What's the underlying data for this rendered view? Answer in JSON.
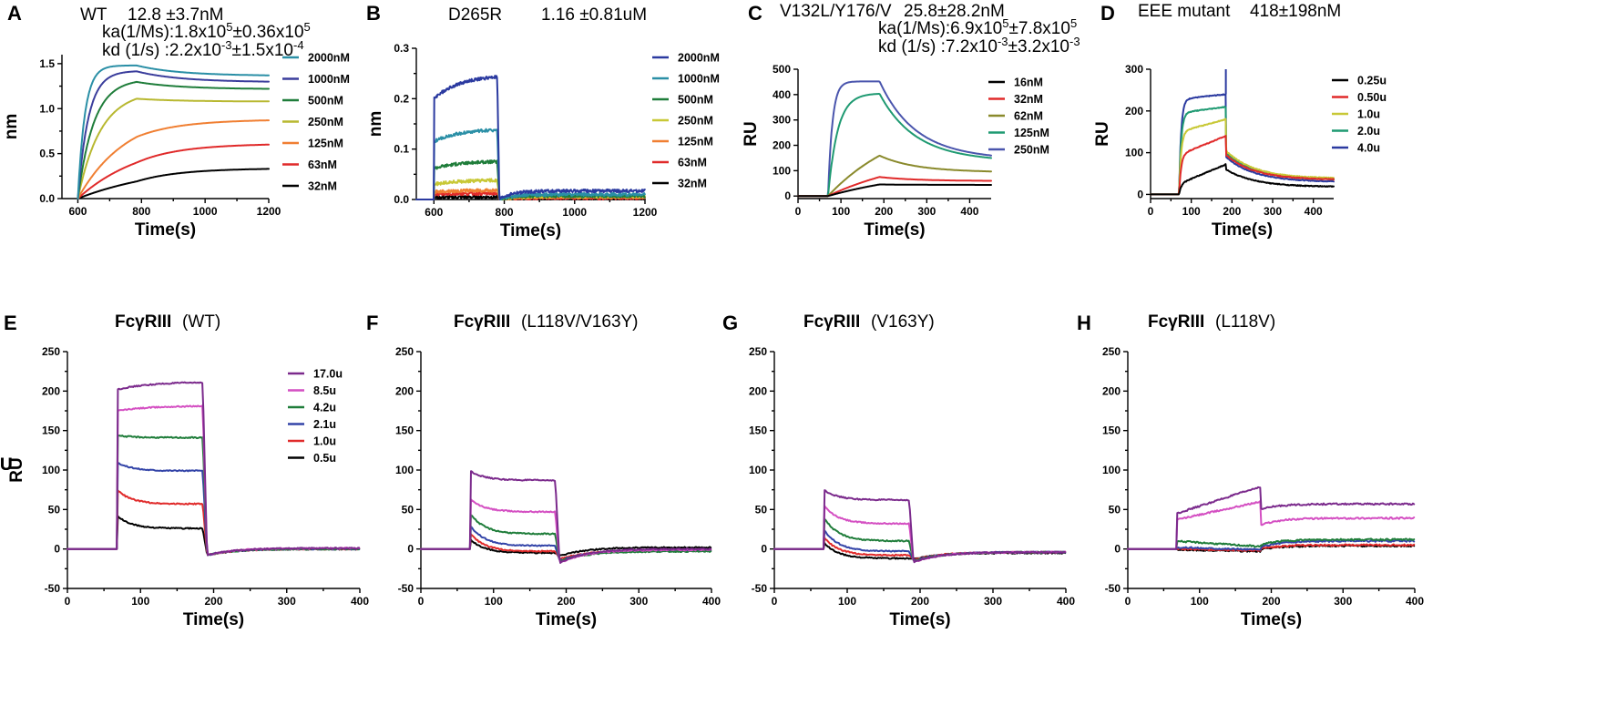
{
  "chart_data": [
    {
      "id": "A",
      "panel_label": "A",
      "type": "line",
      "title": "WT",
      "title_bold": "",
      "subtitle": "12.8 ±3.7nM",
      "annotations": [
        {
          "prefix": "ka(1/Ms):1.8x10",
          "sup1": "5",
          "mid": "±0.36x10",
          "sup2": "5"
        },
        {
          "prefix": "kd (1/s)  :2.2x10",
          "sup1": "-3",
          "mid": "±1.5x10",
          "sup2": "-4"
        }
      ],
      "xlabel": "Time(s)",
      "ylabel": "nm",
      "xlim": [
        550,
        1200
      ],
      "ylim": [
        0,
        1.6
      ],
      "xticks": [
        600,
        800,
        1000,
        1200
      ],
      "yticks": [
        0.0,
        0.5,
        1.0,
        1.5
      ],
      "ytick_labels": [
        "0.0",
        "0.5",
        "1.0",
        "1.5"
      ],
      "xminor": [
        700,
        900,
        1100
      ],
      "yminor": [
        0.25,
        0.75,
        1.25
      ],
      "model": {
        "kind": "kin",
        "t0": 600,
        "t1": 785,
        "tend": 1200,
        "noise": 0.0
      },
      "series": [
        {
          "name": "2000nM",
          "color": "#2a8fa6",
          "plateau": 1.48,
          "rate": 0.045,
          "final": 1.37
        },
        {
          "name": "1000nM",
          "color": "#3a3d9c",
          "plateau": 1.42,
          "rate": 0.03,
          "final": 1.3
        },
        {
          "name": "500nM",
          "color": "#1f7d3a",
          "plateau": 1.33,
          "rate": 0.02,
          "final": 1.22
        },
        {
          "name": "250nM",
          "color": "#b8b830",
          "plateau": 1.2,
          "rate": 0.014,
          "final": 1.08
        },
        {
          "name": "125nM",
          "color": "#f07f32",
          "plateau": 0.98,
          "rate": 0.0065,
          "final": 0.87
        },
        {
          "name": "63nM",
          "color": "#e02a2a",
          "plateau": 0.68,
          "rate": 0.0048,
          "final": 0.6
        },
        {
          "name": "32nM",
          "color": "#000000",
          "plateau": 0.4,
          "rate": 0.0035,
          "final": 0.33
        }
      ]
    },
    {
      "id": "B",
      "panel_label": "B",
      "type": "line",
      "title": "D265R",
      "title_bold": "",
      "subtitle": "1.16 ±0.81uM",
      "annotations": [],
      "xlabel": "Time(s)",
      "ylabel": "nm",
      "xlim": [
        550,
        1200
      ],
      "ylim": [
        0,
        0.3
      ],
      "xticks": [
        600,
        800,
        1000,
        1200
      ],
      "yticks": [
        0.0,
        0.1,
        0.2,
        0.3
      ],
      "ytick_labels": [
        "0.0",
        "0.1",
        "0.2",
        "0.3"
      ],
      "xminor": [
        700,
        900,
        1100
      ],
      "yminor": [
        0.05,
        0.15,
        0.25
      ],
      "model": {
        "kind": "fast",
        "base_start": 550,
        "t0": 600,
        "t1": 780,
        "tend": 1200,
        "noise": 0.003
      },
      "series": [
        {
          "name": "2000nM",
          "color": "#2b3aa0",
          "jump": 0.2,
          "end": 0.243,
          "after": 0.045,
          "tail": 0.017,
          "dip": 0
        },
        {
          "name": "1000nM",
          "color": "#2a8fa6",
          "jump": 0.115,
          "end": 0.138,
          "after": 0.035,
          "tail": 0.01,
          "dip": 0
        },
        {
          "name": "500nM",
          "color": "#1f7d3a",
          "jump": 0.062,
          "end": 0.075,
          "after": 0.025,
          "tail": 0.007,
          "dip": 0
        },
        {
          "name": "250nM",
          "color": "#c8c836",
          "jump": 0.03,
          "end": 0.038,
          "after": 0.018,
          "tail": 0.006,
          "dip": 0
        },
        {
          "name": "125nM",
          "color": "#f07f32",
          "jump": 0.015,
          "end": 0.018,
          "after": 0.012,
          "tail": 0.005,
          "dip": 0
        },
        {
          "name": "63nM",
          "color": "#e02a2a",
          "jump": 0.01,
          "end": 0.012,
          "after": 0.008,
          "tail": 0.003,
          "dip": 0
        },
        {
          "name": "32nM",
          "color": "#000000",
          "jump": 0.004,
          "end": 0.005,
          "after": 0.004,
          "tail": 0.002,
          "dip": 0
        }
      ]
    },
    {
      "id": "C",
      "panel_label": "C",
      "type": "line",
      "title": "V132L/Y176/V",
      "title_bold": "",
      "subtitle": "25.8±28.2nM",
      "annotations": [
        {
          "prefix": "ka(1/Ms):6.9x10",
          "sup1": "5",
          "mid": "±7.8x10",
          "sup2": "5"
        },
        {
          "prefix": "kd (1/s)  :7.2x10",
          "sup1": "-3",
          "mid": "±3.2x10",
          "sup2": "-3"
        }
      ],
      "xlabel": "Time(s)",
      "ylabel": "RU",
      "xlim": [
        0,
        450
      ],
      "ylim": [
        -10,
        500
      ],
      "xticks": [
        0,
        100,
        200,
        300,
        400
      ],
      "yticks": [
        0,
        100,
        200,
        300,
        400,
        500
      ],
      "ytick_labels": [
        "0",
        "100",
        "200",
        "300",
        "400",
        "500"
      ],
      "xminor": [
        50,
        150,
        250,
        350
      ],
      "yminor": [],
      "model": {
        "kind": "kin",
        "base_start": 0,
        "t0": 70,
        "t1": 190,
        "tend": 450,
        "noise": 0.0
      },
      "series": [
        {
          "name": "16nM",
          "color": "#000000",
          "plateau": 120,
          "rate": 0.004,
          "final": 44
        },
        {
          "name": "32nM",
          "color": "#e02a2a",
          "plateau": 180,
          "rate": 0.0045,
          "final": 60
        },
        {
          "name": "62nM",
          "color": "#8a8a2c",
          "plateau": 330,
          "rate": 0.0055,
          "final": 97
        },
        {
          "name": "125nM",
          "color": "#1f9a72",
          "plateau": 405,
          "rate": 0.045,
          "final": 150
        },
        {
          "name": "250nM",
          "color": "#4a55ad",
          "plateau": 452,
          "rate": 0.1,
          "final": 160
        }
      ]
    },
    {
      "id": "D",
      "panel_label": "D",
      "type": "line",
      "title": "EEE mutant",
      "title_bold": "",
      "subtitle": "418±198nM",
      "annotations": [],
      "xlabel": "Time(s)",
      "ylabel": "RU",
      "xlim": [
        0,
        450
      ],
      "ylim": [
        -10,
        300
      ],
      "xticks": [
        0,
        100,
        200,
        300,
        400
      ],
      "yticks": [
        0,
        100,
        200,
        300
      ],
      "ytick_labels": [
        "0",
        "100",
        "200",
        "300"
      ],
      "xminor": [
        50,
        150,
        250,
        350
      ],
      "yminor": [],
      "model": {
        "kind": "mixed",
        "base_start": 0,
        "t0": 70,
        "t1": 185,
        "tend": 450,
        "noise": 1.0
      },
      "series": [
        {
          "name": "0.25u",
          "color": "#000000",
          "jump": 25,
          "end": 72,
          "after": 60,
          "tail": 18,
          "spike": 0
        },
        {
          "name": "0.50u",
          "color": "#e02a2a",
          "jump": 95,
          "end": 140,
          "after": 95,
          "tail": 35,
          "spike": 0
        },
        {
          "name": "1.0u",
          "color": "#c8c836",
          "jump": 150,
          "end": 180,
          "after": 105,
          "tail": 38,
          "spike": 0
        },
        {
          "name": "2.0u",
          "color": "#1f9a72",
          "jump": 195,
          "end": 210,
          "after": 100,
          "tail": 35,
          "spike": 0
        },
        {
          "name": "4.0u",
          "color": "#2b3aa0",
          "jump": 228,
          "end": 240,
          "after": 90,
          "tail": 30,
          "spike": 300
        }
      ]
    },
    {
      "id": "E",
      "panel_label": "E",
      "type": "line",
      "title": "FcγRIII",
      "title_bold": "bold",
      "subtitle": "(WT)",
      "annotations": [],
      "xlabel": "Time(s)",
      "ylabel": "RU",
      "xlim": [
        0,
        400
      ],
      "ylim": [
        -50,
        250
      ],
      "xticks": [
        0,
        100,
        200,
        300,
        400
      ],
      "yticks": [
        -50,
        0,
        50,
        100,
        150,
        200,
        250
      ],
      "ytick_labels": [
        "-50",
        "0",
        "50",
        "100",
        "150",
        "200",
        "250"
      ],
      "xminor": [
        50,
        150,
        250,
        350
      ],
      "yminor": [
        -25,
        25,
        75,
        125,
        175,
        225
      ],
      "model": {
        "kind": "fast",
        "base_start": 0,
        "t0": 68,
        "t1": 185,
        "tend": 400,
        "noise": 0.8
      },
      "series": [
        {
          "name": "17.0u",
          "color": "#7b2a8c",
          "jump": 202,
          "end": 211,
          "after": -5,
          "tail": 1,
          "dip": -8
        },
        {
          "name": "8.5u",
          "color": "#d44fc2",
          "jump": 175,
          "end": 181,
          "after": -5,
          "tail": 1,
          "dip": -8
        },
        {
          "name": "4.2u",
          "color": "#1f7d3a",
          "jump": 144,
          "end": 141,
          "after": -5,
          "tail": 0,
          "dip": -8
        },
        {
          "name": "2.1u",
          "color": "#3344a8",
          "jump": 110,
          "end": 99,
          "after": -5,
          "tail": 0,
          "dip": -8
        },
        {
          "name": "1.0u",
          "color": "#e02a2a",
          "jump": 75,
          "end": 57,
          "after": -5,
          "tail": 0,
          "dip": -8
        },
        {
          "name": "0.5u",
          "color": "#000000",
          "jump": 42,
          "end": 26,
          "after": -5,
          "tail": 0,
          "dip": -8
        }
      ]
    },
    {
      "id": "F",
      "panel_label": "F",
      "type": "line",
      "title": "FcγRIII",
      "title_bold": "bold",
      "subtitle": "(L118V/V163Y)",
      "annotations": [],
      "xlabel": "Time(s)",
      "ylabel": "RU",
      "xlim": [
        0,
        400
      ],
      "ylim": [
        -50,
        250
      ],
      "xticks": [
        0,
        100,
        200,
        300,
        400
      ],
      "yticks": [
        -50,
        0,
        50,
        100,
        150,
        200,
        250
      ],
      "ytick_labels": [
        "-50",
        "0",
        "50",
        "100",
        "150",
        "200",
        "250"
      ],
      "xminor": [
        50,
        150,
        250,
        350
      ],
      "yminor": [
        -25,
        25,
        75,
        125,
        175,
        225
      ],
      "model": {
        "kind": "fast",
        "base_start": 0,
        "t0": 68,
        "t1": 185,
        "tend": 400,
        "noise": 0.8
      },
      "series": [
        {
          "name": "17.0u",
          "color": "#7b2a8c",
          "jump": 99,
          "end": 87,
          "after": -15,
          "tail": 0,
          "dip": -18
        },
        {
          "name": "8.5u",
          "color": "#d44fc2",
          "jump": 63,
          "end": 47,
          "after": -15,
          "tail": -1,
          "dip": -18
        },
        {
          "name": "4.2u",
          "color": "#1f7d3a",
          "jump": 45,
          "end": 19,
          "after": -14,
          "tail": -3,
          "dip": -16
        },
        {
          "name": "2.1u",
          "color": "#3344a8",
          "jump": 30,
          "end": 4,
          "after": -13,
          "tail": -2,
          "dip": -15
        },
        {
          "name": "1.0u",
          "color": "#e02a2a",
          "jump": 20,
          "end": -3,
          "after": -12,
          "tail": -2,
          "dip": -13
        },
        {
          "name": "0.5u",
          "color": "#000000",
          "jump": 12,
          "end": -5,
          "after": -8,
          "tail": 2,
          "dip": -9
        }
      ]
    },
    {
      "id": "G",
      "panel_label": "G",
      "type": "line",
      "title": "FcγRIII",
      "title_bold": "bold",
      "subtitle": "(V163Y)",
      "annotations": [],
      "xlabel": "Time(s)",
      "ylabel": "RU",
      "xlim": [
        0,
        400
      ],
      "ylim": [
        -50,
        250
      ],
      "xticks": [
        0,
        100,
        200,
        300,
        400
      ],
      "yticks": [
        -50,
        0,
        50,
        100,
        150,
        200,
        250
      ],
      "ytick_labels": [
        "-50",
        "0",
        "50",
        "100",
        "150",
        "200",
        "250"
      ],
      "xminor": [
        50,
        150,
        250,
        350
      ],
      "yminor": [
        -25,
        25,
        75,
        125,
        175,
        225
      ],
      "model": {
        "kind": "fast",
        "base_start": 0,
        "t0": 68,
        "t1": 185,
        "tend": 400,
        "noise": 0.8
      },
      "series": [
        {
          "name": "17.0u",
          "color": "#7b2a8c",
          "jump": 75,
          "end": 62,
          "after": -15,
          "tail": -4,
          "dip": -17
        },
        {
          "name": "8.5u",
          "color": "#d44fc2",
          "jump": 55,
          "end": 32,
          "after": -15,
          "tail": -4,
          "dip": -17
        },
        {
          "name": "4.2u",
          "color": "#1f7d3a",
          "jump": 40,
          "end": 10,
          "after": -14,
          "tail": -4,
          "dip": -16
        },
        {
          "name": "2.1u",
          "color": "#3344a8",
          "jump": 25,
          "end": -3,
          "after": -13,
          "tail": -4,
          "dip": -15
        },
        {
          "name": "1.0u",
          "color": "#e02a2a",
          "jump": 15,
          "end": -8,
          "after": -12,
          "tail": -4,
          "dip": -14
        },
        {
          "name": "0.5u",
          "color": "#000000",
          "jump": 8,
          "end": -12,
          "after": -10,
          "tail": -5,
          "dip": -13
        }
      ]
    },
    {
      "id": "H",
      "panel_label": "H",
      "type": "line",
      "title": "FcγRIII",
      "title_bold": "bold",
      "subtitle": " (L118V)",
      "annotations": [],
      "xlabel": "Time(s)",
      "ylabel": "RU",
      "xlim": [
        0,
        400
      ],
      "ylim": [
        -50,
        250
      ],
      "xticks": [
        0,
        100,
        200,
        300,
        400
      ],
      "yticks": [
        -50,
        0,
        50,
        100,
        150,
        200,
        250
      ],
      "ytick_labels": [
        "-50",
        "0",
        "50",
        "100",
        "150",
        "200",
        "250"
      ],
      "xminor": [
        50,
        150,
        250,
        350
      ],
      "yminor": [
        -25,
        25,
        75,
        125,
        175,
        225
      ],
      "model": {
        "kind": "drift",
        "base_start": 0,
        "t0": 68,
        "t1": 185,
        "tend": 400,
        "noise": 1.0
      },
      "series": [
        {
          "name": "17.0u",
          "color": "#7b2a8c",
          "jump": 45,
          "end": 79,
          "after": 50,
          "tail": 57
        },
        {
          "name": "8.5u",
          "color": "#d44fc2",
          "jump": 37,
          "end": 60,
          "after": 30,
          "tail": 39
        },
        {
          "name": "4.2u",
          "color": "#1f7d3a",
          "jump": 10,
          "end": 3,
          "after": 5,
          "tail": 12
        },
        {
          "name": "2.1u",
          "color": "#3344a8",
          "jump": 2,
          "end": -1,
          "after": 2,
          "tail": 10
        },
        {
          "name": "1.0u",
          "color": "#e02a2a",
          "jump": 0,
          "end": -2,
          "after": 0,
          "tail": 5
        },
        {
          "name": "0.5u",
          "color": "#000000",
          "jump": -1,
          "end": -3,
          "after": -1,
          "tail": 4
        }
      ]
    }
  ]
}
